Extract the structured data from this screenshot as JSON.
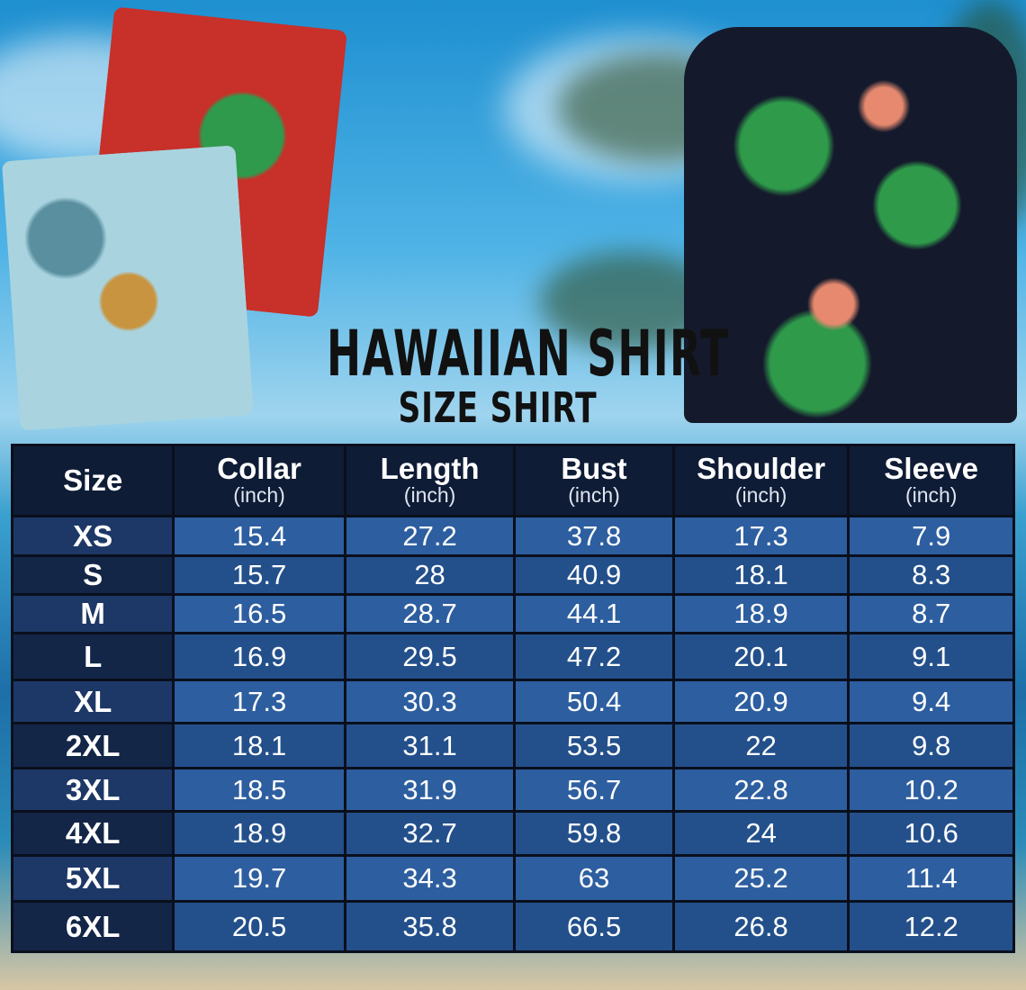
{
  "title": "HAWAIIAN SHIRT",
  "subtitle": "SIZE SHIRT",
  "table": {
    "headers": [
      {
        "label": "Size",
        "unit": ""
      },
      {
        "label": "Collar",
        "unit": "(inch)"
      },
      {
        "label": "Length",
        "unit": "(inch)"
      },
      {
        "label": "Bust",
        "unit": "(inch)"
      },
      {
        "label": "Shoulder",
        "unit": "(inch)"
      },
      {
        "label": "Sleeve",
        "unit": "(inch)"
      }
    ],
    "rows": [
      [
        "XS",
        "15.4",
        "27.2",
        "37.8",
        "17.3",
        "7.9"
      ],
      [
        "S",
        "15.7",
        "28",
        "40.9",
        "18.1",
        "8.3"
      ],
      [
        "M",
        "16.5",
        "28.7",
        "44.1",
        "18.9",
        "8.7"
      ],
      [
        "L",
        "16.9",
        "29.5",
        "47.2",
        "20.1",
        "9.1"
      ],
      [
        "XL",
        "17.3",
        "30.3",
        "50.4",
        "20.9",
        "9.4"
      ],
      [
        "2XL",
        "18.1",
        "31.1",
        "53.5",
        "22",
        "9.8"
      ],
      [
        "3XL",
        "18.5",
        "31.9",
        "56.7",
        "22.8",
        "10.2"
      ],
      [
        "4XL",
        "18.9",
        "32.7",
        "59.8",
        "24",
        "10.6"
      ],
      [
        "5XL",
        "19.7",
        "34.3",
        "63",
        "25.2",
        "11.4"
      ],
      [
        "6XL",
        "20.5",
        "35.8",
        "66.5",
        "26.8",
        "12.2"
      ]
    ]
  },
  "colors": {
    "header": "#0f1c36",
    "cell_light": "#2d5e9f",
    "cell_dark": "#23508b",
    "size_col": "#1d3866"
  }
}
